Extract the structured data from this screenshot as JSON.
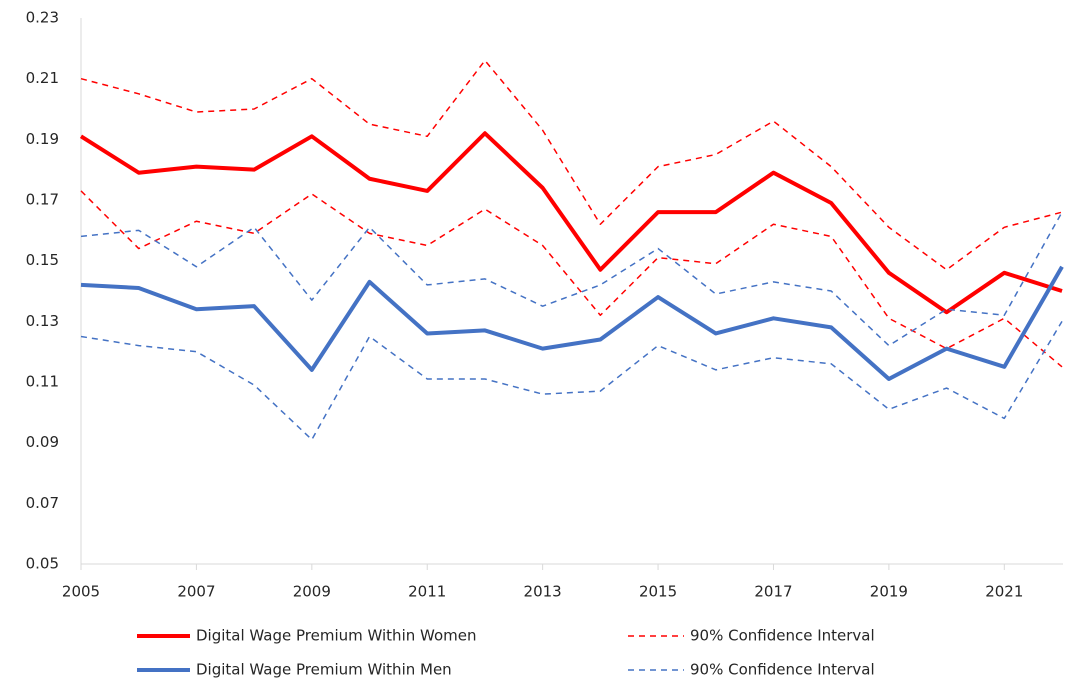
{
  "chart_data": {
    "type": "line",
    "x": [
      2005,
      2006,
      2007,
      2008,
      2009,
      2010,
      2011,
      2012,
      2013,
      2014,
      2015,
      2016,
      2017,
      2018,
      2019,
      2020,
      2021,
      2022
    ],
    "xlim": [
      2005,
      2022
    ],
    "xticks": [
      2005,
      2007,
      2009,
      2011,
      2013,
      2015,
      2017,
      2019,
      2021
    ],
    "ylim": [
      0.05,
      0.23
    ],
    "yticks": [
      0.05,
      0.07,
      0.09,
      0.11,
      0.13,
      0.15,
      0.17,
      0.19,
      0.21,
      0.23
    ],
    "grid": false,
    "legend": "bottom",
    "series": [
      {
        "name": "Digital Wage Premium Within Women",
        "color": "#ff0000",
        "values": [
          0.191,
          0.179,
          0.181,
          0.18,
          0.191,
          0.177,
          0.173,
          0.192,
          0.174,
          0.147,
          0.166,
          0.166,
          0.179,
          0.169,
          0.146,
          0.133,
          0.146,
          0.14
        ],
        "ci": {
          "name": "90% Confidence Interval",
          "color": "#ff0000",
          "upper": [
            0.21,
            0.205,
            0.199,
            0.2,
            0.21,
            0.195,
            0.191,
            0.216,
            0.193,
            0.162,
            0.181,
            0.185,
            0.196,
            0.181,
            0.161,
            0.147,
            0.161,
            0.166
          ],
          "lower": [
            0.173,
            0.154,
            0.163,
            0.159,
            0.172,
            0.159,
            0.155,
            0.167,
            0.155,
            0.132,
            0.151,
            0.149,
            0.162,
            0.158,
            0.131,
            0.121,
            0.131,
            0.115
          ]
        }
      },
      {
        "name": "Digital Wage Premium Within Men",
        "color": "#4472c4",
        "values": [
          0.142,
          0.141,
          0.134,
          0.135,
          0.114,
          0.143,
          0.126,
          0.127,
          0.121,
          0.124,
          0.138,
          0.126,
          0.131,
          0.128,
          0.111,
          0.121,
          0.115,
          0.148
        ],
        "ci": {
          "name": "90% Confidence Interval",
          "color": "#4472c4",
          "upper": [
            0.158,
            0.16,
            0.148,
            0.161,
            0.137,
            0.161,
            0.142,
            0.144,
            0.135,
            0.142,
            0.154,
            0.139,
            0.143,
            0.14,
            0.122,
            0.134,
            0.132,
            0.166
          ],
          "lower": [
            0.125,
            0.122,
            0.12,
            0.109,
            0.091,
            0.125,
            0.111,
            0.111,
            0.106,
            0.107,
            0.122,
            0.114,
            0.118,
            0.116,
            0.101,
            0.108,
            0.098,
            0.13
          ]
        }
      }
    ]
  }
}
